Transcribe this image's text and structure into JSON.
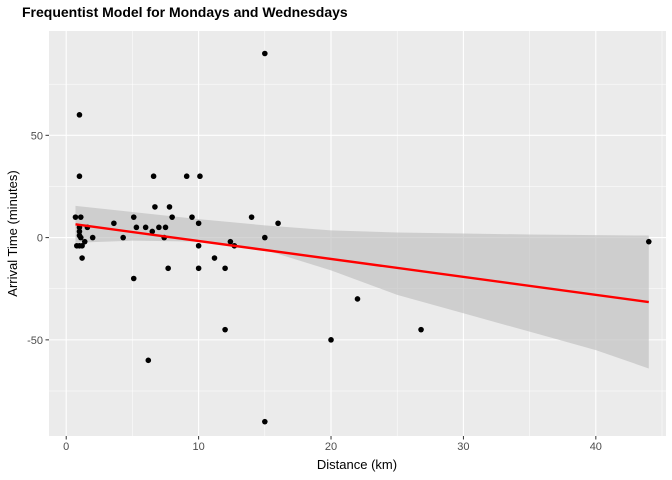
{
  "chart_data": {
    "type": "scatter",
    "title": "Frequentist Model for Mondays and Wednesdays",
    "xlabel": "Distance (km)",
    "ylabel": "Arrival Time (minutes)",
    "xlim": [
      -1.3,
      45.3
    ],
    "ylim": [
      -97,
      101
    ],
    "xticks": [
      0,
      10,
      20,
      30,
      40
    ],
    "yticks": [
      -50,
      0,
      50
    ],
    "xtick_labels": [
      "0",
      "10",
      "20",
      "30",
      "40"
    ],
    "ytick_labels": [
      "-50",
      "0",
      "50"
    ],
    "grid": true,
    "colors": {
      "panel": "#ebebeb",
      "grid": "#ffffff",
      "points": "#000000",
      "fit": "#ff0000",
      "band": "#bfbfbf"
    },
    "points": [
      [
        15,
        90
      ],
      [
        1,
        60
      ],
      [
        1,
        30
      ],
      [
        6.6,
        30
      ],
      [
        9.1,
        30
      ],
      [
        10.1,
        30
      ],
      [
        0.7,
        10
      ],
      [
        1.1,
        10
      ],
      [
        5.1,
        10
      ],
      [
        8,
        10
      ],
      [
        9.5,
        10
      ],
      [
        14,
        10
      ],
      [
        16,
        7
      ],
      [
        10,
        7
      ],
      [
        3.6,
        7
      ],
      [
        1,
        5
      ],
      [
        1.6,
        5
      ],
      [
        5.3,
        5
      ],
      [
        6,
        5
      ],
      [
        7,
        5
      ],
      [
        7.5,
        5
      ],
      [
        6.7,
        15
      ],
      [
        7.8,
        15
      ],
      [
        1,
        3
      ],
      [
        6.5,
        3
      ],
      [
        1,
        1
      ],
      [
        4.3,
        0
      ],
      [
        2,
        0
      ],
      [
        7.4,
        0
      ],
      [
        15,
        0
      ],
      [
        1.1,
        0
      ],
      [
        1.4,
        -2
      ],
      [
        12.4,
        -2
      ],
      [
        0.8,
        -4
      ],
      [
        1,
        -4
      ],
      [
        1.2,
        -4
      ],
      [
        10,
        -4
      ],
      [
        12.7,
        -4
      ],
      [
        1.2,
        -10
      ],
      [
        11.2,
        -10
      ],
      [
        7.7,
        -15
      ],
      [
        10,
        -15
      ],
      [
        12,
        -15
      ],
      [
        5.1,
        -20
      ],
      [
        22,
        -30
      ],
      [
        12,
        -45
      ],
      [
        26.8,
        -45
      ],
      [
        20,
        -50
      ],
      [
        6.2,
        -60
      ],
      [
        15,
        -90
      ],
      [
        44,
        -2
      ]
    ],
    "fit": {
      "x": [
        0.7,
        44
      ],
      "y": [
        6.5,
        -31.5
      ]
    },
    "confidence_band": {
      "x": [
        0.7,
        5,
        10,
        15,
        20,
        25,
        30,
        35,
        40,
        44
      ],
      "upper": [
        15.5,
        12.5,
        9,
        6,
        3.5,
        2.5,
        2,
        1.5,
        1.2,
        1
      ],
      "lower": [
        -2.5,
        -1.5,
        -2,
        -6,
        -16,
        -28,
        -37,
        -46,
        -55,
        -64
      ]
    }
  }
}
